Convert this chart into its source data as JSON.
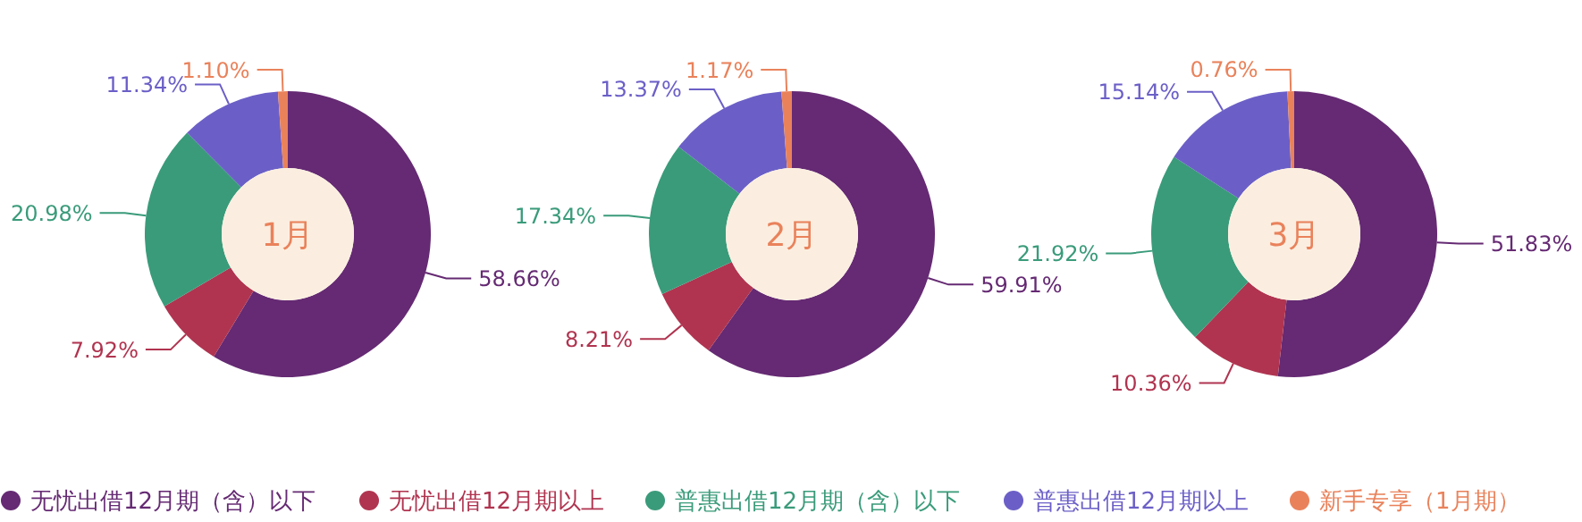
{
  "chart_data": {
    "type": "donut",
    "categories": [
      "无忧出借12月期（含）以下",
      "无忧出借12月期以上",
      "普惠出借12月期（含）以下",
      "普惠出借12月期以上",
      "新手专享（1月期）"
    ],
    "colors": [
      "#652a73",
      "#b03450",
      "#3a9b7a",
      "#6b5fc7",
      "#e9825b"
    ],
    "legend": "bottom",
    "series": [
      {
        "name": "1月",
        "values": [
          58.66,
          7.92,
          20.98,
          11.34,
          1.1
        ],
        "value_labels": [
          "58.66%",
          "7.92%",
          "20.98%",
          "11.34%",
          "1.10%"
        ]
      },
      {
        "name": "2月",
        "values": [
          59.91,
          8.21,
          17.34,
          13.37,
          1.17
        ],
        "value_labels": [
          "59.91%",
          "8.21%",
          "17.34%",
          "13.37%",
          "1.17%"
        ]
      },
      {
        "name": "3月",
        "values": [
          51.83,
          10.36,
          21.92,
          15.14,
          0.76
        ],
        "value_labels": [
          "51.83%",
          "10.36%",
          "21.92%",
          "15.14%",
          "0.76%"
        ]
      }
    ]
  }
}
